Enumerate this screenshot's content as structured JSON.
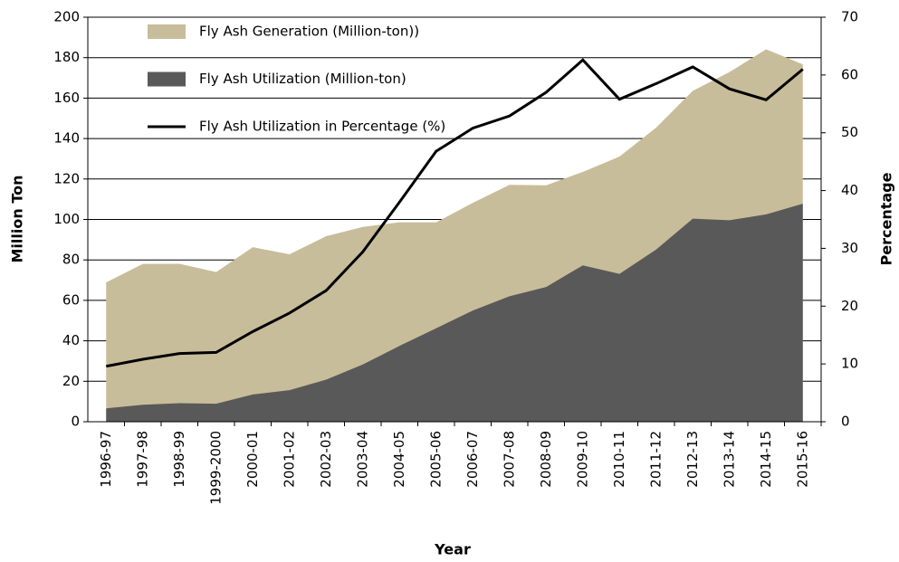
{
  "chart_data": {
    "type": "area",
    "x_label": "Year",
    "y_label": "Million Ton",
    "y2_label": "Percentage",
    "categories": [
      "1996-97",
      "1997-98",
      "1998-99",
      "1999-2000",
      "2000-01",
      "2001-02",
      "2002-03",
      "2003-04",
      "2004-05",
      "2005-06",
      "2006-07",
      "2007-08",
      "2008-09",
      "2009-10",
      "2010-11",
      "2011-12",
      "2012-13",
      "2013-14",
      "2014-15",
      "2015-16"
    ],
    "series": [
      {
        "name": "Fly Ash Generation (Million-ton))",
        "color": "#c8bd9a",
        "type": "area",
        "values": [
          68.9,
          78.0,
          78.1,
          74.0,
          86.3,
          82.8,
          91.7,
          96.3,
          98.6,
          98.6,
          108.2,
          117.1,
          116.9,
          123.5,
          131.1,
          145.4,
          163.6,
          172.9,
          184.1,
          176.7
        ]
      },
      {
        "name": "Fly Ash Utilization  (Million-ton)",
        "color": "#595959",
        "type": "area",
        "values": [
          6.6,
          8.4,
          9.2,
          8.9,
          13.5,
          15.6,
          20.8,
          28.3,
          37.5,
          46.2,
          55.0,
          62.0,
          66.6,
          77.3,
          73.1,
          85.1,
          100.4,
          99.6,
          102.5,
          107.8
        ]
      },
      {
        "name": "Fly Ash Utilization  in Percentage (%)",
        "color": "#000000",
        "type": "line",
        "axis": "y2",
        "values": [
          9.6,
          10.8,
          11.8,
          12.0,
          15.6,
          18.8,
          22.7,
          29.4,
          38.0,
          46.8,
          50.8,
          52.9,
          57.0,
          62.6,
          55.8,
          58.5,
          61.4,
          57.6,
          55.7,
          61.0
        ]
      }
    ],
    "ylim": [
      0,
      200
    ],
    "yticks": [
      0,
      20,
      40,
      60,
      80,
      100,
      120,
      140,
      160,
      180,
      200
    ],
    "y2lim": [
      0,
      70
    ],
    "y2ticks": [
      0,
      10,
      20,
      30,
      40,
      50,
      60,
      70
    ],
    "grid": true,
    "legend": "upper left"
  }
}
